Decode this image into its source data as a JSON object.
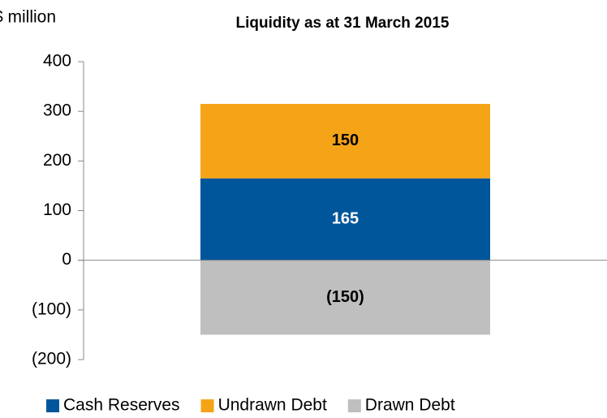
{
  "chart_data": {
    "type": "bar",
    "stacked": true,
    "title": "Liquidity as at 31 March 2015",
    "y_label": "$ million",
    "categories": [
      null
    ],
    "series": [
      {
        "name": "Cash Reserves",
        "color": "#00569b",
        "label_color": "#ffffff",
        "values": [
          165
        ]
      },
      {
        "name": "Undrawn Debt",
        "color": "#f5a418",
        "label_color": "#000000",
        "values": [
          150
        ]
      },
      {
        "name": "Drawn Debt",
        "color": "#bfbfbf",
        "label_color": "#000000",
        "values": [
          -150
        ],
        "value_labels": [
          "(150)"
        ]
      }
    ],
    "ylim": [
      -200,
      400
    ],
    "yticks": [
      {
        "value": -200,
        "label": "(200)"
      },
      {
        "value": -100,
        "label": "(100)"
      },
      0,
      100,
      200,
      300,
      400
    ],
    "grid": false,
    "legend": "bottom"
  }
}
